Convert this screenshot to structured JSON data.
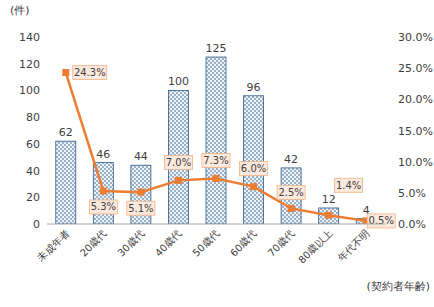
{
  "chart_data": {
    "type": "bar",
    "y_label": "(件)",
    "x_label": "(契約者年齢)",
    "categories": [
      "未成年者",
      "20歳代",
      "30歳代",
      "40歳代",
      "50歳代",
      "60歳代",
      "70歳代",
      "80歳以上",
      "年代不明"
    ],
    "series": [
      {
        "type": "bar",
        "color": "#2e5c8a",
        "values": [
          62,
          46,
          44,
          100,
          125,
          96,
          42,
          12,
          4
        ]
      },
      {
        "type": "line",
        "color": "#ed7d31",
        "marker": "square",
        "axis": "y2",
        "values": [
          24.3,
          5.3,
          5.1,
          7.0,
          7.3,
          6.0,
          2.5,
          1.4,
          0.5
        ],
        "value_labels": [
          "24.3%",
          "5.3%",
          "5.1%",
          "7.0%",
          "7.3%",
          "6.0%",
          "2.5%",
          "1.4%",
          "0.5%"
        ]
      }
    ],
    "ylim": [
      0,
      140
    ],
    "yticks": [
      0,
      20,
      40,
      60,
      80,
      100,
      120,
      140
    ],
    "y2lim": [
      0,
      30
    ],
    "y2ticks": [
      {
        "value": 0,
        "label": "0.0%"
      },
      {
        "value": 5,
        "label": "5.0%"
      },
      {
        "value": 10,
        "label": "10.0%"
      },
      {
        "value": 15,
        "label": "15.0%"
      },
      {
        "value": 20,
        "label": "20.0%"
      },
      {
        "value": 25,
        "label": "25.0%"
      },
      {
        "value": 30,
        "label": "30.0%"
      }
    ],
    "grid": false,
    "data_labels": true
  }
}
